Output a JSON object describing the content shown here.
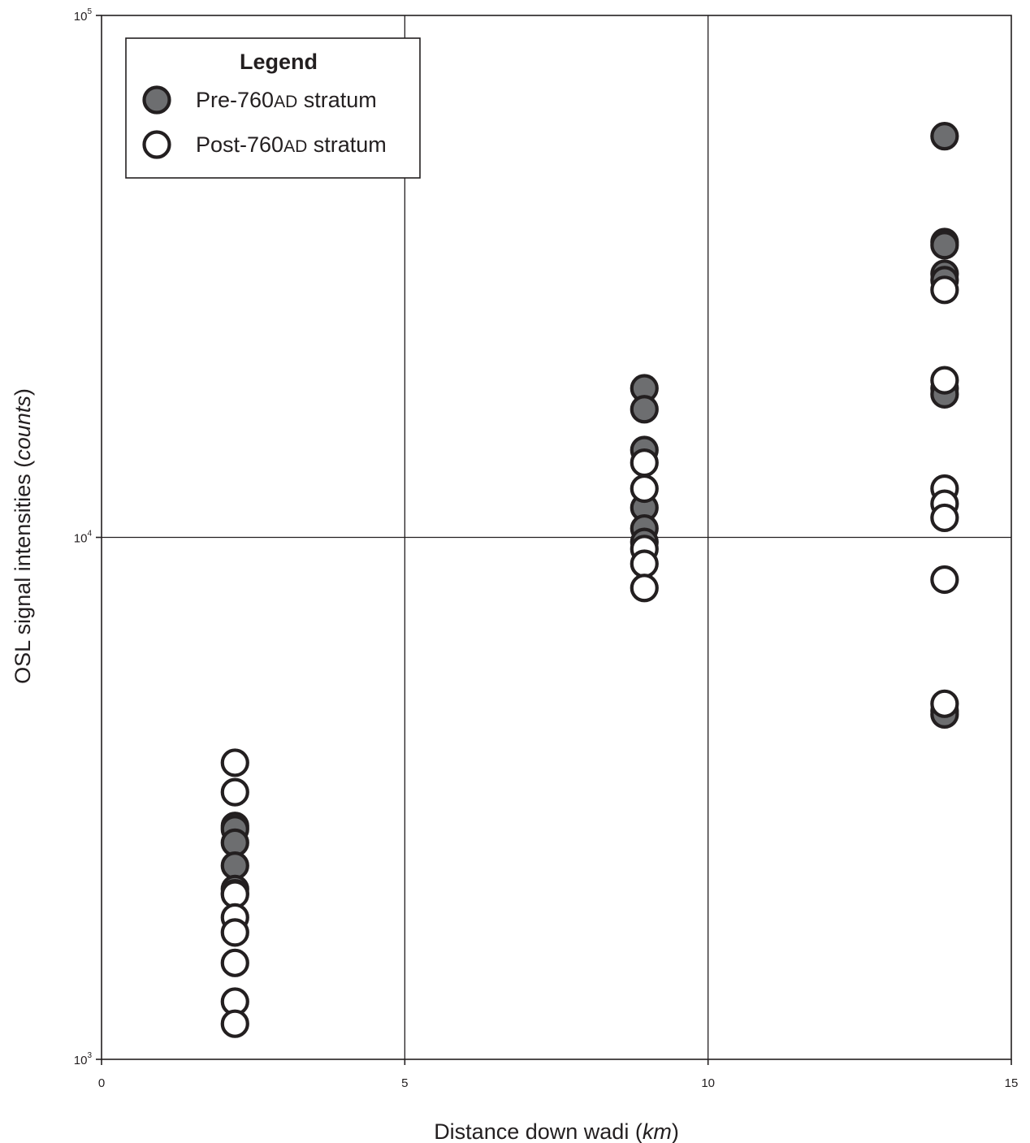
{
  "chart_data": {
    "type": "scatter",
    "xlabel": {
      "main": "Distance down wadi (",
      "italic": "km",
      "end": ")"
    },
    "ylabel": {
      "main": "OSL signal intensities (",
      "italic": "counts",
      "end": ")"
    },
    "xlim": [
      0,
      15
    ],
    "ylim": [
      1000,
      100000
    ],
    "yscale": "log",
    "grid": true,
    "x_ticks": [
      "0",
      "5",
      "10",
      "15"
    ],
    "y_ticks": [
      {
        "base": "10",
        "exp": "3"
      },
      {
        "base": "10",
        "exp": "4"
      },
      {
        "base": "10",
        "exp": "5"
      }
    ],
    "legend": {
      "title": "Legend",
      "placement": "top-left",
      "entries": [
        {
          "parts": [
            "Pre-760",
            "AD",
            " stratum"
          ],
          "fill": "#6d6e70"
        },
        {
          "parts": [
            "Post-760",
            "AD",
            " stratum"
          ],
          "fill": "#ffffff"
        }
      ]
    },
    "series": [
      {
        "name": "Pre-760AD stratum",
        "fill": "#6d6e70",
        "points": [
          [
            2.2,
            2800
          ],
          [
            2.2,
            2760
          ],
          [
            2.2,
            2600
          ],
          [
            2.2,
            2350
          ],
          [
            2.2,
            2120
          ],
          [
            2.2,
            2080
          ],
          [
            8.95,
            19300
          ],
          [
            8.95,
            17600
          ],
          [
            8.95,
            14700
          ],
          [
            8.95,
            11400
          ],
          [
            8.95,
            10400
          ],
          [
            8.95,
            9800
          ],
          [
            13.9,
            58700
          ],
          [
            13.9,
            36800
          ],
          [
            13.9,
            36300
          ],
          [
            13.9,
            32000
          ],
          [
            13.9,
            31100
          ],
          [
            13.9,
            19300
          ],
          [
            13.9,
            18800
          ],
          [
            13.9,
            4650
          ],
          [
            13.9,
            4580
          ]
        ]
      },
      {
        "name": "Post-760AD stratum",
        "fill": "#ffffff",
        "points": [
          [
            2.2,
            3700
          ],
          [
            2.2,
            3250
          ],
          [
            2.2,
            2070
          ],
          [
            2.2,
            1870
          ],
          [
            2.2,
            1750
          ],
          [
            2.2,
            1530
          ],
          [
            2.2,
            1290
          ],
          [
            2.2,
            1170
          ],
          [
            8.95,
            13900
          ],
          [
            8.95,
            12400
          ],
          [
            8.95,
            9500
          ],
          [
            8.95,
            8900
          ],
          [
            8.95,
            8000
          ],
          [
            13.9,
            29800
          ],
          [
            13.9,
            20000
          ],
          [
            13.9,
            12400
          ],
          [
            13.9,
            11600
          ],
          [
            13.9,
            10900
          ],
          [
            13.9,
            8300
          ],
          [
            13.9,
            4800
          ]
        ]
      }
    ]
  }
}
